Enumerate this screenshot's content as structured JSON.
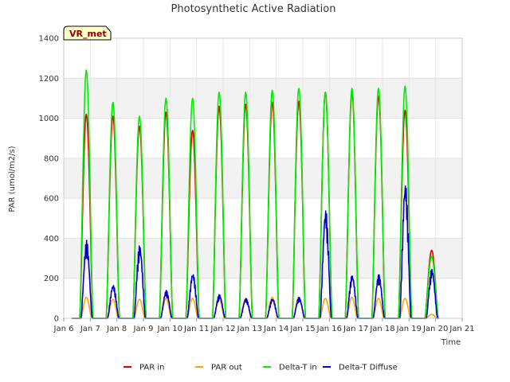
{
  "chart_data": {
    "type": "line",
    "title": "Photosynthetic Active Radiation",
    "xlabel": "Time",
    "ylabel": "PAR (umol/m2/s)",
    "ylim": [
      0,
      1400
    ],
    "xlim": [
      6,
      21
    ],
    "yticks": [
      0,
      200,
      400,
      600,
      800,
      1000,
      1200,
      1400
    ],
    "xticks": [
      {
        "value": 6,
        "label": "Jan 6"
      },
      {
        "value": 7,
        "label": "Jan 7"
      },
      {
        "value": 8,
        "label": "Jan 8"
      },
      {
        "value": 9,
        "label": "Jan 9"
      },
      {
        "value": 10,
        "label": "Jan 10"
      },
      {
        "value": 11,
        "label": "Jan 11"
      },
      {
        "value": 12,
        "label": "Jan 12"
      },
      {
        "value": 13,
        "label": "Jan 13"
      },
      {
        "value": 14,
        "label": "Jan 14"
      },
      {
        "value": 15,
        "label": "Jan 15"
      },
      {
        "value": 16,
        "label": "Jan 16"
      },
      {
        "value": 17,
        "label": "Jan 17"
      },
      {
        "value": 18,
        "label": "Jan 18"
      },
      {
        "value": 19,
        "label": "Jan 19"
      },
      {
        "value": 20,
        "label": "Jan 20"
      },
      {
        "value": 21,
        "label": "Jan 21"
      }
    ],
    "station_label": "VR_met",
    "series": [
      {
        "name": "PAR in",
        "color": "#dd0000",
        "daily_peaks": [
          1020,
          1010,
          960,
          1030,
          940,
          1060,
          1070,
          1080,
          1085,
          1130,
          1130,
          1110,
          1040,
          340
        ],
        "rise": 0.15,
        "fall": 0.65
      },
      {
        "name": "PAR out",
        "color": "#ffa500",
        "daily_peaks": [
          105,
          95,
          95,
          100,
          100,
          95,
          100,
          105,
          105,
          100,
          105,
          100,
          100,
          20
        ],
        "rise": 0.2,
        "fall": 0.6
      },
      {
        "name": "Delta-T in",
        "color": "#00ee00",
        "daily_peaks": [
          1240,
          1080,
          1010,
          1100,
          1100,
          1130,
          1130,
          1140,
          1150,
          1130,
          1150,
          1150,
          1160,
          310
        ],
        "rise": 0.15,
        "fall": 0.65
      },
      {
        "name": "Delta-T Diffuse",
        "color": "#0000cc",
        "daily_peaks": [
          390,
          170,
          370,
          140,
          230,
          120,
          100,
          100,
          105,
          550,
          220,
          220,
          690,
          250
        ],
        "rise": 0.2,
        "fall": 0.62
      }
    ],
    "day_starts": [
      6.5,
      7.5,
      8.5,
      9.5,
      10.5,
      11.5,
      12.5,
      13.5,
      14.5,
      15.5,
      16.5,
      17.5,
      18.5,
      19.5
    ],
    "legend": [
      "PAR in",
      "PAR out",
      "Delta-T in",
      "Delta-T Diffuse"
    ],
    "legend_position": "bottom-center",
    "grid": true
  }
}
